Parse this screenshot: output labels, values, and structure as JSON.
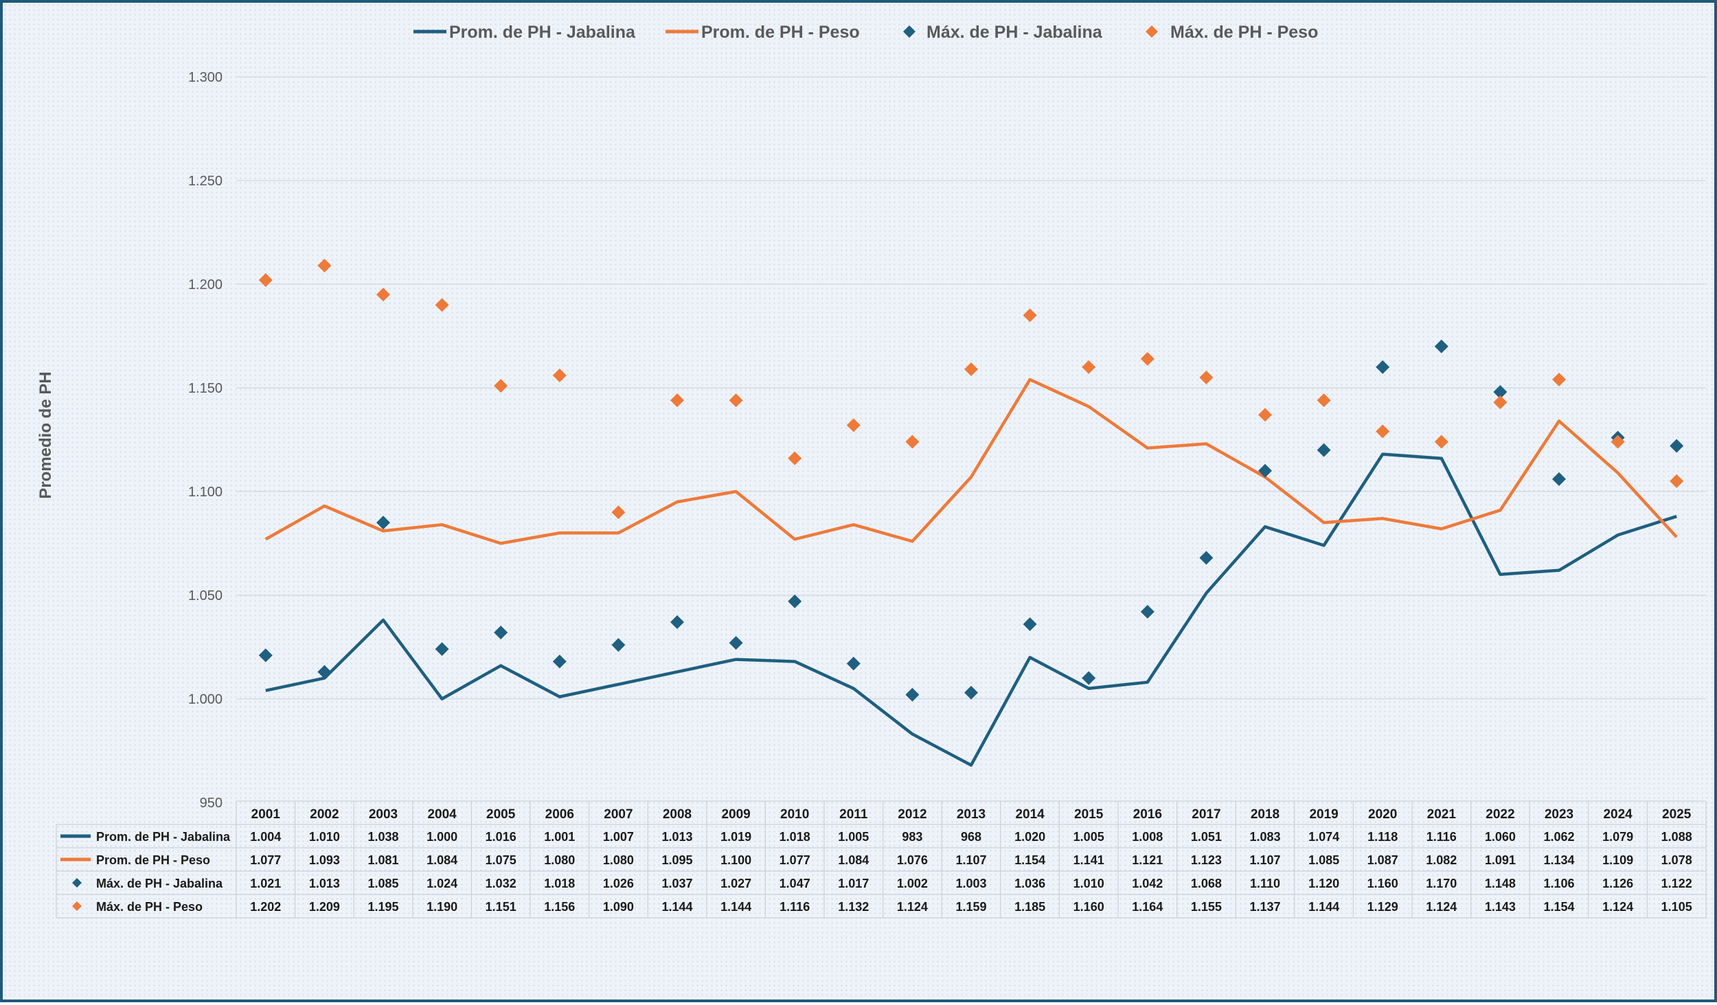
{
  "chart_data": {
    "type": "line",
    "title": "",
    "ylabel": "Promedio de PH",
    "xlabel": "",
    "ylim": [
      950,
      1300
    ],
    "yticks": [
      950,
      1000,
      1050,
      1100,
      1150,
      1200,
      1250,
      1300
    ],
    "ytick_labels": [
      "950",
      "1.000",
      "1.050",
      "1.100",
      "1.150",
      "1.200",
      "1.250",
      "1.300"
    ],
    "grid": true,
    "legend_position": "top-center",
    "categories": [
      "2001",
      "2002",
      "2003",
      "2004",
      "2005",
      "2006",
      "2007",
      "2008",
      "2009",
      "2010",
      "2011",
      "2012",
      "2013",
      "2014",
      "2015",
      "2016",
      "2017",
      "2018",
      "2019",
      "2020",
      "2021",
      "2022",
      "2023",
      "2024",
      "2025"
    ],
    "series": [
      {
        "name": "Prom. de PH - Jabalina",
        "kind": "line",
        "color": "#1f5f80",
        "values": [
          1004,
          1010,
          1038,
          1000,
          1016,
          1001,
          1007,
          1013,
          1019,
          1018,
          1005,
          983,
          968,
          1020,
          1005,
          1008,
          1051,
          1083,
          1074,
          1118,
          1116,
          1060,
          1062,
          1079,
          1088
        ],
        "labels": [
          "1.004",
          "1.010",
          "1.038",
          "1.000",
          "1.016",
          "1.001",
          "1.007",
          "1.013",
          "1.019",
          "1.018",
          "1.005",
          "983",
          "968",
          "1.020",
          "1.005",
          "1.008",
          "1.051",
          "1.083",
          "1.074",
          "1.118",
          "1.116",
          "1.060",
          "1.062",
          "1.079",
          "1.088"
        ]
      },
      {
        "name": "Prom. de PH - Peso",
        "kind": "line",
        "color": "#ee7a3a",
        "values": [
          1077,
          1093,
          1081,
          1084,
          1075,
          1080,
          1080,
          1095,
          1100,
          1077,
          1084,
          1076,
          1107,
          1154,
          1141,
          1121,
          1123,
          1107,
          1085,
          1087,
          1082,
          1091,
          1134,
          1109,
          1078
        ],
        "labels": [
          "1.077",
          "1.093",
          "1.081",
          "1.084",
          "1.075",
          "1.080",
          "1.080",
          "1.095",
          "1.100",
          "1.077",
          "1.084",
          "1.076",
          "1.107",
          "1.154",
          "1.141",
          "1.121",
          "1.123",
          "1.107",
          "1.085",
          "1.087",
          "1.082",
          "1.091",
          "1.134",
          "1.109",
          "1.078"
        ]
      },
      {
        "name": "Máx. de PH - Jabalina",
        "kind": "marker",
        "color": "#1f5f80",
        "values": [
          1021,
          1013,
          1085,
          1024,
          1032,
          1018,
          1026,
          1037,
          1027,
          1047,
          1017,
          1002,
          1003,
          1036,
          1010,
          1042,
          1068,
          1110,
          1120,
          1160,
          1170,
          1148,
          1106,
          1126,
          1122
        ],
        "labels": [
          "1.021",
          "1.013",
          "1.085",
          "1.024",
          "1.032",
          "1.018",
          "1.026",
          "1.037",
          "1.027",
          "1.047",
          "1.017",
          "1.002",
          "1.003",
          "1.036",
          "1.010",
          "1.042",
          "1.068",
          "1.110",
          "1.120",
          "1.160",
          "1.170",
          "1.148",
          "1.106",
          "1.126",
          "1.122"
        ]
      },
      {
        "name": "Máx. de PH - Peso",
        "kind": "marker",
        "color": "#ee7a3a",
        "values": [
          1202,
          1209,
          1195,
          1190,
          1151,
          1156,
          1090,
          1144,
          1144,
          1116,
          1132,
          1124,
          1159,
          1185,
          1160,
          1164,
          1155,
          1137,
          1144,
          1129,
          1124,
          1143,
          1154,
          1124,
          1105
        ],
        "labels": [
          "1.202",
          "1.209",
          "1.195",
          "1.190",
          "1.151",
          "1.156",
          "1.090",
          "1.144",
          "1.144",
          "1.116",
          "1.132",
          "1.124",
          "1.159",
          "1.185",
          "1.160",
          "1.164",
          "1.155",
          "1.137",
          "1.144",
          "1.129",
          "1.124",
          "1.143",
          "1.154",
          "1.124",
          "1.105"
        ]
      }
    ]
  }
}
